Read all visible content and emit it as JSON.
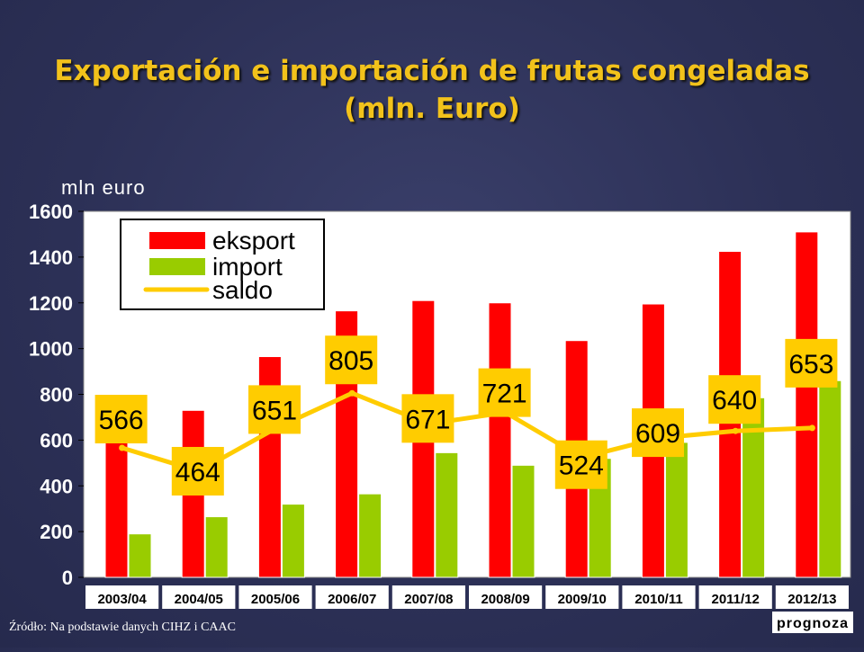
{
  "title_line1": "Exportación e importación de frutas congeladas",
  "title_line2": "(mln. Euro)",
  "source": "Źródło: Na podstawie danych CIHZ i CAAC",
  "chart_data": {
    "type": "bar",
    "ylabel": "mln euro",
    "ylim": [
      0,
      1600
    ],
    "yticks": [
      0,
      200,
      400,
      600,
      800,
      1000,
      1200,
      1400,
      1600
    ],
    "grid": false,
    "legend_position": "top-left",
    "categories": [
      "2003/04",
      "2004/05",
      "2005/06",
      "2006/07",
      "2007/08",
      "2008/09",
      "2009/10",
      "2010/11",
      "2011/12",
      "2012/13"
    ],
    "x_annotation": "prognoza",
    "series": [
      {
        "name": "eksport",
        "kind": "bar",
        "color": "#ff0000",
        "values": [
          760,
          730,
          965,
          1165,
          1210,
          1200,
          1035,
          1195,
          1425,
          1510
        ]
      },
      {
        "name": "import",
        "kind": "bar",
        "color": "#99cc00",
        "values": [
          190,
          265,
          320,
          365,
          545,
          490,
          520,
          590,
          785,
          860
        ]
      },
      {
        "name": "saldo",
        "kind": "line",
        "color": "#ffcc00",
        "values": [
          566,
          464,
          651,
          805,
          671,
          721,
          524,
          609,
          640,
          653
        ]
      }
    ],
    "data_labels": [
      "566",
      "464",
      "651",
      "805",
      "671",
      "721",
      "524",
      "609",
      "640",
      "653"
    ]
  }
}
